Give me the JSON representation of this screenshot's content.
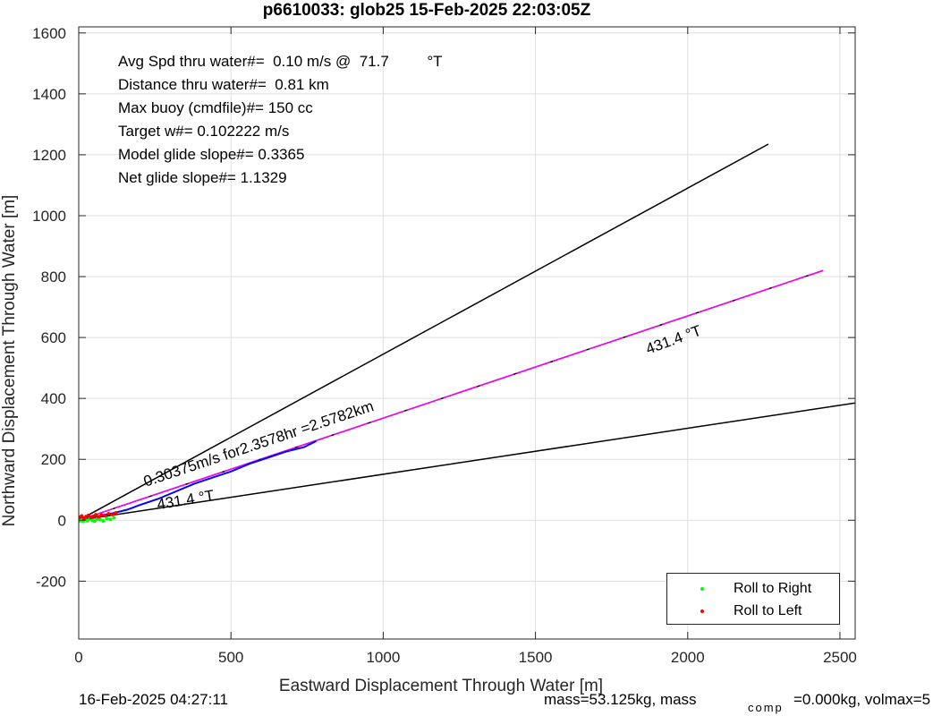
{
  "chart_data": {
    "type": "line",
    "title": "p6610033: glob25 15-Feb-2025 22:03:05Z",
    "xlabel": "Eastward Displacement Through Water [m]",
    "ylabel": "Northward Displacement Through Water [m]",
    "xlim": [
      0,
      2550
    ],
    "ylim": [
      -390,
      1620
    ],
    "xticks": [
      0,
      500,
      1000,
      1500,
      2000,
      2500
    ],
    "yticks": [
      -200,
      0,
      200,
      400,
      600,
      800,
      1000,
      1200,
      1400,
      1600
    ],
    "grid": true,
    "legend_position": "bottom-right",
    "series": [
      {
        "name": "Roll to Right",
        "color": "#00ff00",
        "marker": "dot"
      },
      {
        "name": "Roll to Left",
        "color": "#ff0000",
        "marker": "dot"
      }
    ],
    "lines": [
      {
        "color": "#000000",
        "x": [
          0,
          2265
        ],
        "y": [
          0,
          1235
        ]
      },
      {
        "color": "#000000",
        "x": [
          0,
          2550
        ],
        "y": [
          0,
          385
        ]
      },
      {
        "color": "#000000",
        "x": [
          0,
          2445
        ],
        "y": [
          0,
          820
        ]
      },
      {
        "color": "#ff00ff",
        "x": [
          0,
          2445
        ],
        "y": [
          0,
          820
        ]
      }
    ],
    "track": {
      "color": "#0000ff",
      "x": [
        0,
        20,
        45,
        70,
        95,
        120,
        160,
        200,
        260,
        320,
        380,
        440,
        500,
        560,
        620,
        680,
        740,
        780
      ],
      "y": [
        5,
        8,
        10,
        15,
        20,
        25,
        35,
        50,
        70,
        95,
        120,
        140,
        160,
        185,
        205,
        225,
        240,
        260
      ]
    },
    "green_dots": {
      "x": [
        2,
        8,
        14,
        20,
        28,
        36,
        44,
        52,
        60,
        70,
        80,
        92,
        104,
        116
      ],
      "y": [
        -2,
        2,
        -4,
        3,
        -1,
        5,
        0,
        -3,
        4,
        2,
        -2,
        6,
        3,
        8
      ]
    },
    "red_dots": {
      "x": [
        4,
        10,
        17,
        24,
        32,
        40,
        48,
        56,
        65,
        75,
        86,
        98,
        110,
        122
      ],
      "y": [
        10,
        14,
        6,
        12,
        16,
        9,
        13,
        18,
        11,
        17,
        15,
        21,
        19,
        24
      ]
    },
    "annotations": [
      {
        "text": "0.30375m/s for2.3578hr =2.5782km",
        "x": 220,
        "y": 110,
        "angle": -18.5
      },
      {
        "text": "431.4 °T",
        "x": 260,
        "y": 35,
        "angle": -9.5
      },
      {
        "text": "431.4 °T",
        "x": 1870,
        "y": 545,
        "angle": -20
      }
    ]
  },
  "stats": {
    "avg_speed": "Avg Spd thru water#=  0.10 m/s @  71.7         °T",
    "distance": "Distance thru water#=  0.81 km",
    "max_buoy": "Max buoy (cmdfile)#= 150 cc",
    "target_w": "Target w#= 0.102222 m/s",
    "model_glide": "Model glide slope#= 0.3365",
    "net_glide": "Net glide slope#= 1.1329"
  },
  "footer": {
    "date": "16-Feb-2025 04:27:11",
    "mass": "mass=53.125kg, mass",
    "comp_sub": "comp",
    "comp_rest": "=0.000kg, volmax=5"
  }
}
